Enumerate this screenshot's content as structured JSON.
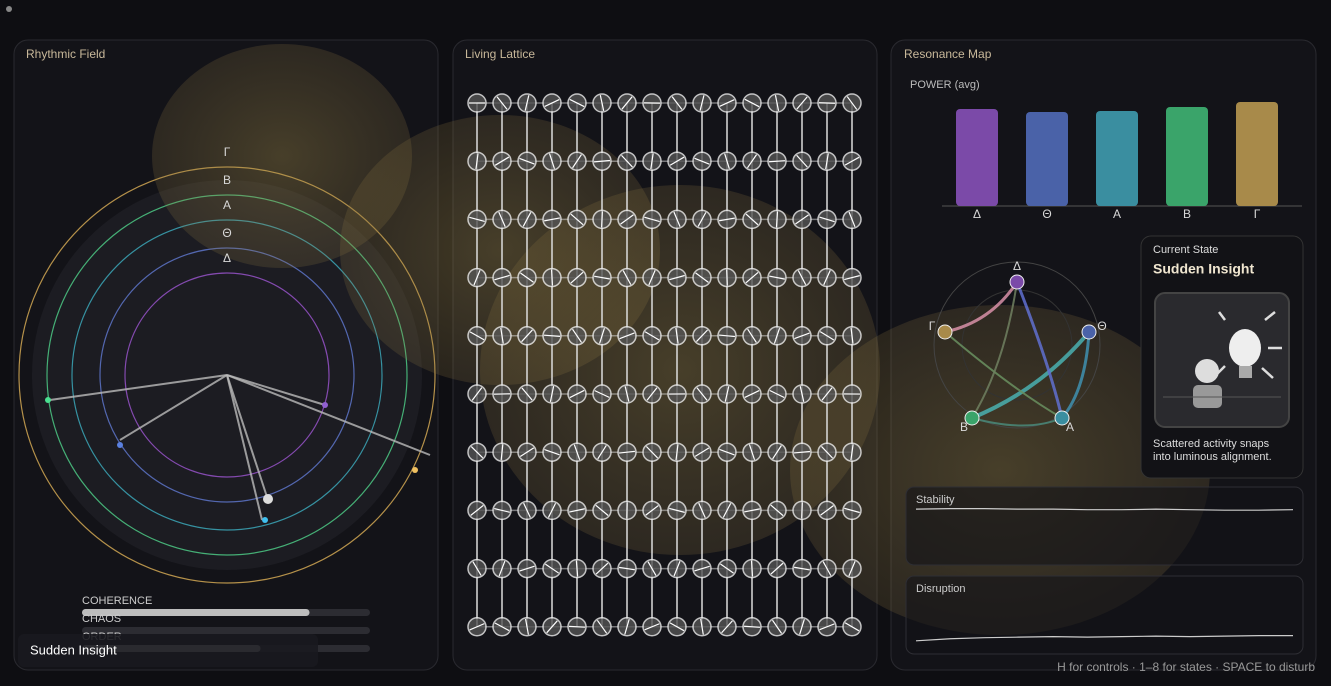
{
  "rhythmic_field": {
    "title": "Rhythmic Field",
    "bands": [
      "Γ",
      "Β",
      "Α",
      "Θ",
      "Δ"
    ],
    "meters": [
      {
        "label": "COHERENCE",
        "value": 0.79
      },
      {
        "label": "CHAOS",
        "value": 0
      },
      {
        "label": "ORDER",
        "value": 0.62
      }
    ],
    "badge": "Sudden Insight"
  },
  "living_lattice": {
    "title": "Living Lattice"
  },
  "resonance_map": {
    "title": "Resonance Map",
    "power_chart": {
      "type": "bar",
      "label": "POWER (avg)",
      "categories": [
        "Δ",
        "Θ",
        "Α",
        "Β",
        "Γ"
      ],
      "values": [
        97,
        94,
        95,
        99,
        104
      ],
      "colors": [
        "#7b4aa8",
        "#4a62a8",
        "#3a8ea0",
        "#3aa46a",
        "#a88a4a"
      ]
    },
    "current_state": {
      "heading": "Current State",
      "name": "Sudden Insight",
      "description": [
        "Scattered activity snaps",
        "into luminous alignment."
      ]
    },
    "stability": {
      "label": "Stability",
      "values": [
        0.92,
        0.93,
        0.93,
        0.92,
        0.92,
        0.91,
        0.91,
        0.92,
        0.91,
        0.9,
        0.9,
        0.91
      ]
    },
    "disruption": {
      "label": "Disruption",
      "values": [
        0.1,
        0.14,
        0.16,
        0.17,
        0.18,
        0.17,
        0.18,
        0.19,
        0.18,
        0.19,
        0.2,
        0.2
      ]
    }
  },
  "footer": "H for controls · 1–8 for states · SPACE to disturb"
}
